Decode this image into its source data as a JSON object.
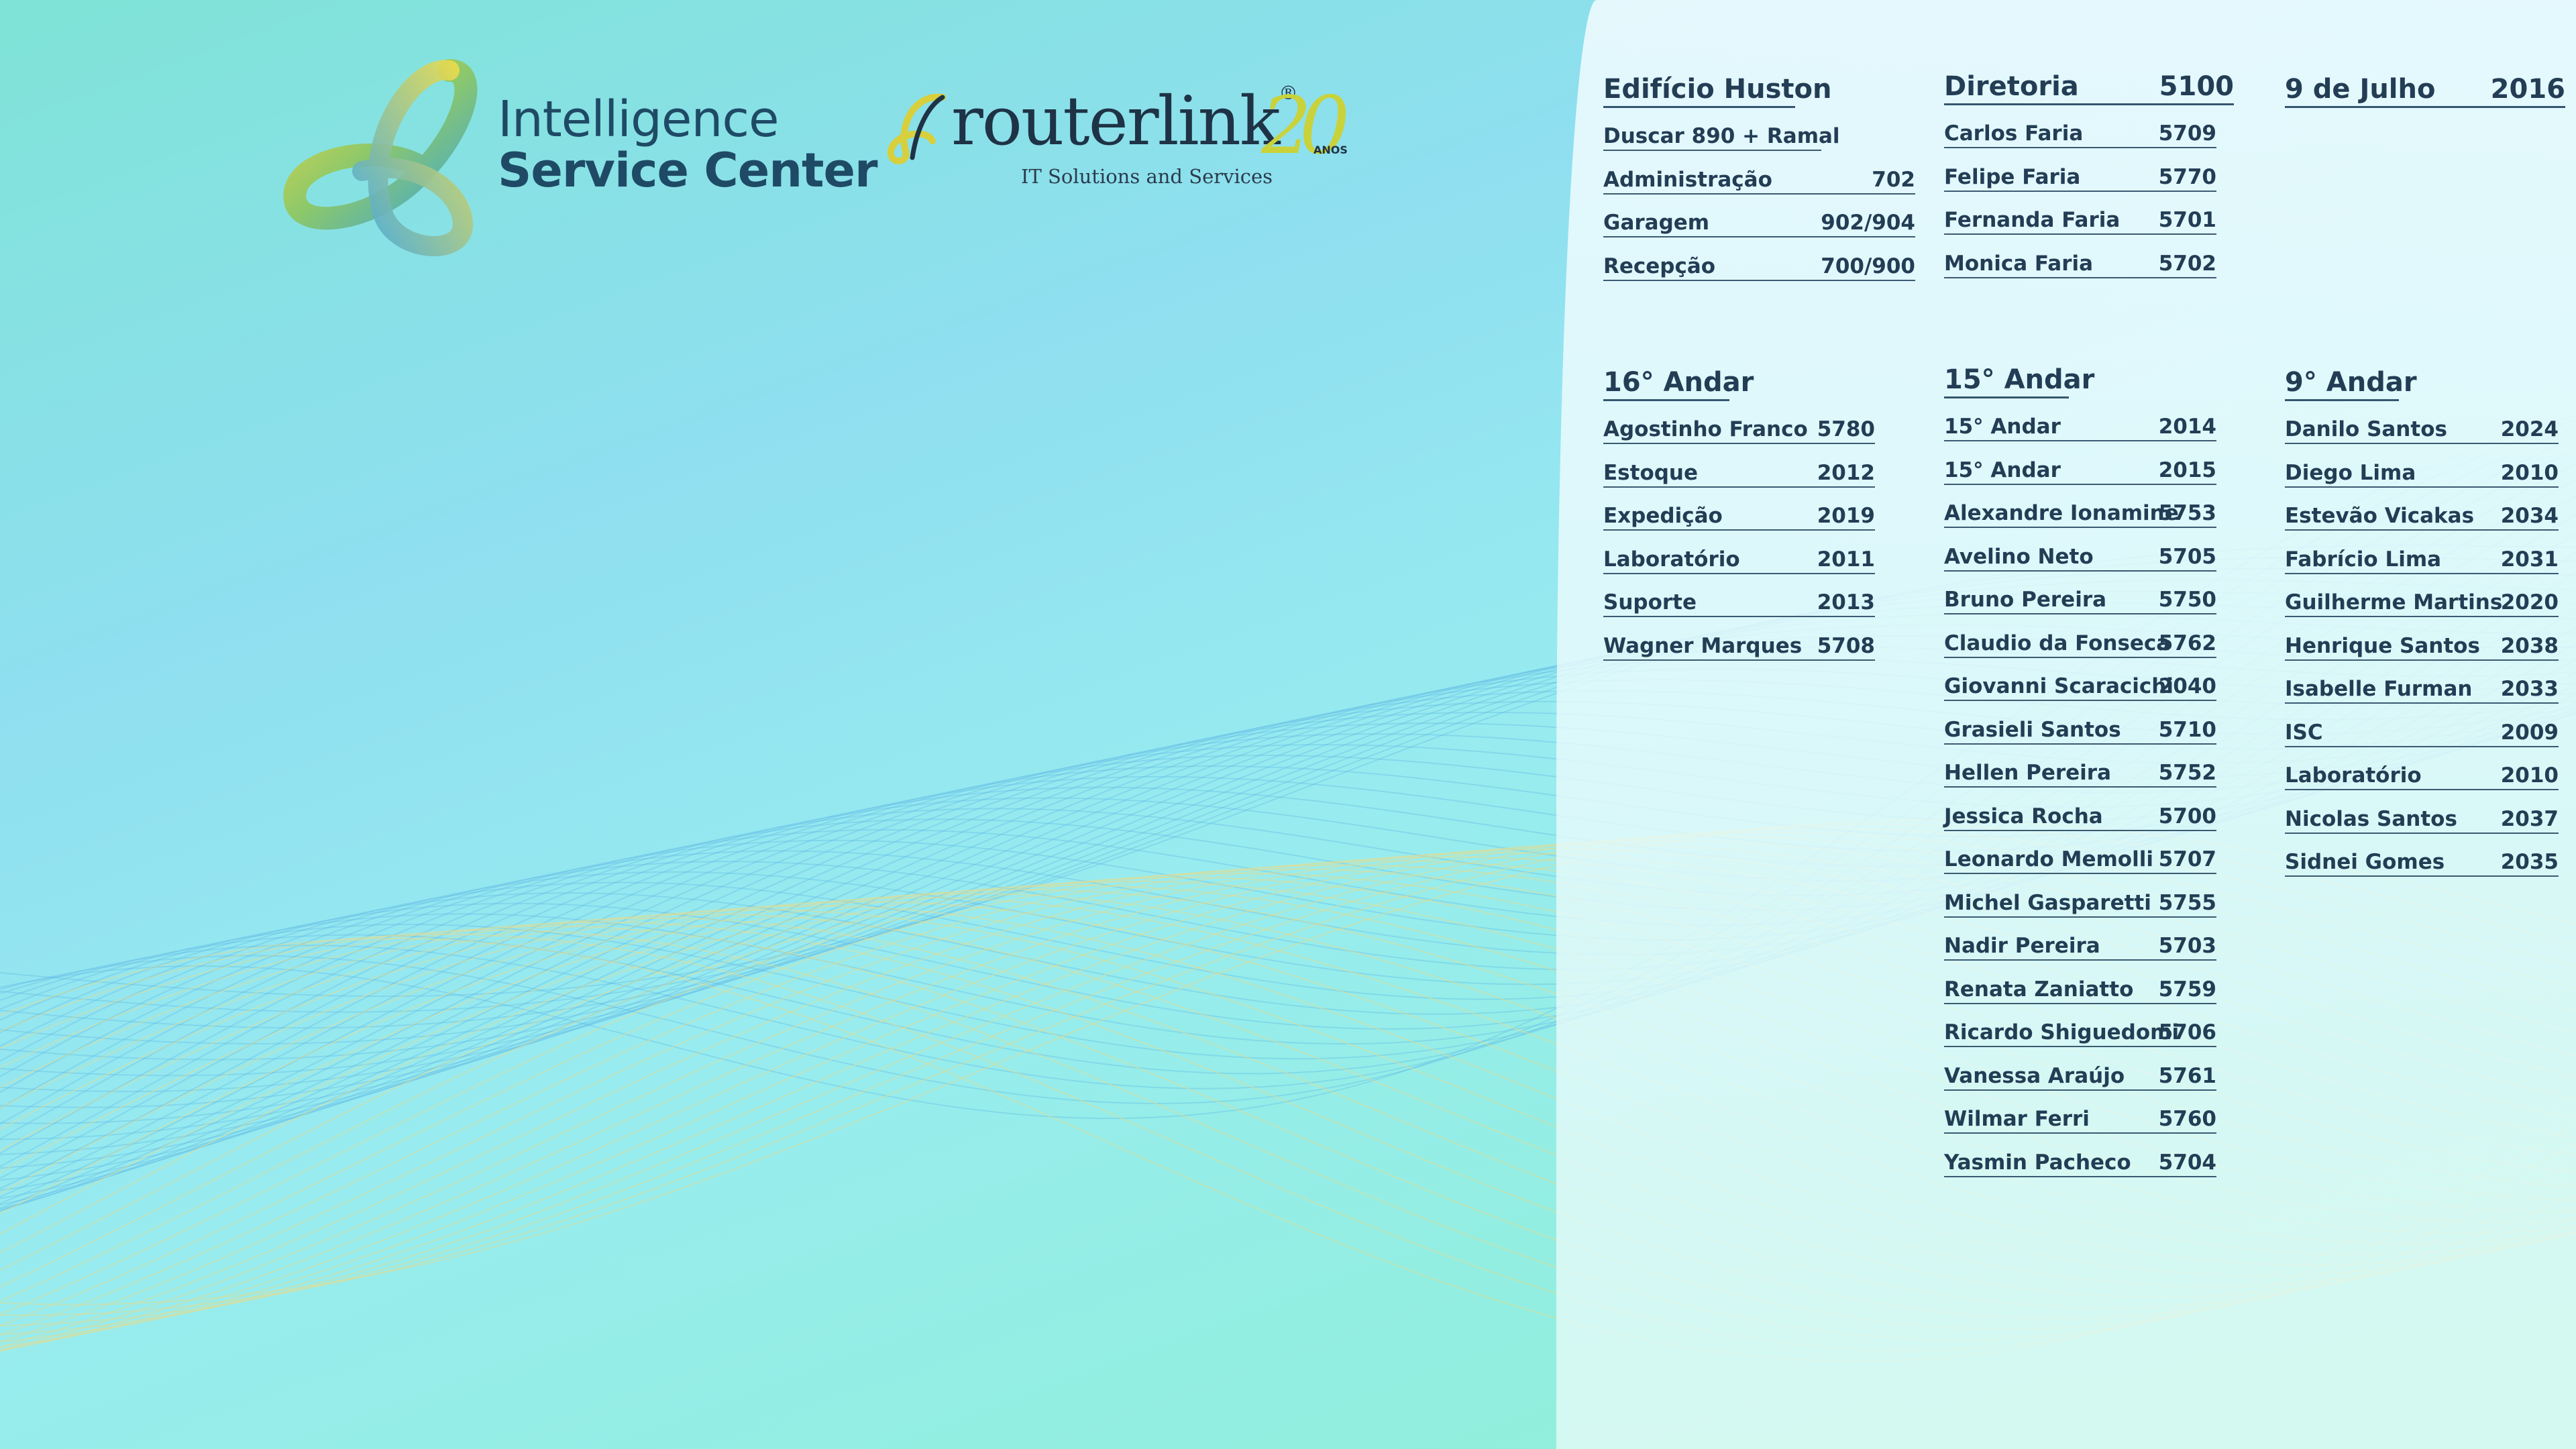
{
  "logos": {
    "isc": {
      "line1": "Intelligence",
      "line2": "Service Center"
    },
    "routerlink": {
      "word": "routerlink",
      "registered": "®",
      "anniversary": "20",
      "anos": "ANOS",
      "tagline": "IT Solutions and Services"
    }
  },
  "directory": {
    "edificio": {
      "title": "Edifício Huston",
      "rows": [
        {
          "name": "Duscar 890 + Ramal",
          "ext": ""
        },
        {
          "name": "Administração",
          "ext": "702"
        },
        {
          "name": "Garagem",
          "ext": "902/904"
        },
        {
          "name": "Recepção",
          "ext": "700/900"
        }
      ]
    },
    "diretoria": {
      "title": "Diretoria",
      "ext": "5100",
      "rows": [
        {
          "name": "Carlos Faria",
          "ext": "5709"
        },
        {
          "name": "Felipe Faria",
          "ext": "5770"
        },
        {
          "name": "Fernanda Faria",
          "ext": "5701"
        },
        {
          "name": "Monica Faria",
          "ext": "5702"
        }
      ]
    },
    "julho": {
      "title": "9 de Julho",
      "ext": "2016"
    },
    "andar16": {
      "title": "16° Andar",
      "rows": [
        {
          "name": "Agostinho Franco",
          "ext": "5780"
        },
        {
          "name": "Estoque",
          "ext": "2012"
        },
        {
          "name": "Expedição",
          "ext": "2019"
        },
        {
          "name": "Laboratório",
          "ext": "2011"
        },
        {
          "name": "Suporte",
          "ext": "2013"
        },
        {
          "name": "Wagner Marques",
          "ext": "5708"
        }
      ]
    },
    "andar15": {
      "title": "15° Andar",
      "rows": [
        {
          "name": "15° Andar",
          "ext": "2014"
        },
        {
          "name": "15° Andar",
          "ext": "2015"
        },
        {
          "name": "Alexandre Ionamine",
          "ext": "5753"
        },
        {
          "name": "Avelino Neto",
          "ext": "5705"
        },
        {
          "name": "Bruno Pereira",
          "ext": "5750"
        },
        {
          "name": "Claudio da Fonseca",
          "ext": "5762"
        },
        {
          "name": "Giovanni Scaracichi",
          "ext": "2040"
        },
        {
          "name": "Grasieli Santos",
          "ext": "5710"
        },
        {
          "name": "Hellen Pereira",
          "ext": "5752"
        },
        {
          "name": "Jessica Rocha",
          "ext": "5700"
        },
        {
          "name": "Leonardo Memolli",
          "ext": "5707"
        },
        {
          "name": "Michel Gasparetti",
          "ext": "5755"
        },
        {
          "name": "Nadir Pereira",
          "ext": "5703"
        },
        {
          "name": "Renata Zaniatto",
          "ext": "5759"
        },
        {
          "name": "Ricardo Shiguedomi",
          "ext": "5706"
        },
        {
          "name": "Vanessa Araújo",
          "ext": "5761"
        },
        {
          "name": "Wilmar Ferri",
          "ext": "5760"
        },
        {
          "name": "Yasmin Pacheco",
          "ext": "5704"
        }
      ]
    },
    "andar9": {
      "title": "9° Andar",
      "rows": [
        {
          "name": "Danilo Santos",
          "ext": "2024"
        },
        {
          "name": "Diego Lima",
          "ext": "2010"
        },
        {
          "name": "Estevão Vicakas",
          "ext": "2034"
        },
        {
          "name": "Fabrício Lima",
          "ext": "2031"
        },
        {
          "name": "Guilherme Martins",
          "ext": "2020"
        },
        {
          "name": "Henrique Santos",
          "ext": "2038"
        },
        {
          "name": "Isabelle Furman",
          "ext": "2033"
        },
        {
          "name": "ISC",
          "ext": "2009"
        },
        {
          "name": "Laboratório",
          "ext": "2010"
        },
        {
          "name": "Nicolas Santos",
          "ext": "2037"
        },
        {
          "name": "Sidnei Gomes",
          "ext": "2035"
        }
      ]
    }
  },
  "colors": {
    "text": "#233d55",
    "wave_blue": "#5fb8e6",
    "wave_yellow": "#e8dc8a",
    "accent_green": "#c9d23a"
  }
}
